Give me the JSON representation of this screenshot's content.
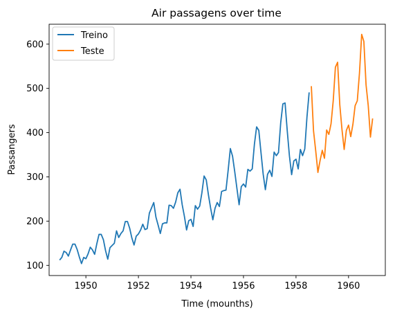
{
  "chart_data": {
    "type": "line",
    "title": "Air passagens over time",
    "xlabel": "Time (mounths)",
    "ylabel": "Passangers",
    "xlim": [
      1948.6,
      1961.4
    ],
    "ylim": [
      77,
      645
    ],
    "x_ticks": [
      1950,
      1952,
      1954,
      1956,
      1958,
      1960
    ],
    "y_ticks": [
      100,
      200,
      300,
      400,
      500,
      600
    ],
    "grid": false,
    "legend_position": "top-left",
    "series": [
      {
        "name": "Treino",
        "color": "#1f77b4",
        "x_start": "1949-01",
        "x_step": "1 month",
        "values": [
          112,
          118,
          132,
          129,
          121,
          135,
          148,
          148,
          136,
          119,
          104,
          118,
          115,
          126,
          141,
          135,
          125,
          149,
          170,
          170,
          158,
          133,
          114,
          140,
          145,
          150,
          178,
          163,
          172,
          178,
          199,
          199,
          184,
          162,
          146,
          166,
          171,
          180,
          193,
          181,
          183,
          218,
          230,
          242,
          209,
          191,
          172,
          194,
          196,
          196,
          236,
          235,
          229,
          243,
          264,
          272,
          237,
          211,
          180,
          201,
          204,
          188,
          235,
          227,
          234,
          264,
          302,
          293,
          259,
          229,
          203,
          229,
          242,
          233,
          267,
          269,
          270,
          315,
          364,
          347,
          312,
          274,
          237,
          278,
          284,
          277,
          317,
          313,
          318,
          374,
          413,
          405,
          355,
          306,
          271,
          306,
          315,
          301,
          356,
          348,
          355,
          422,
          465,
          467,
          404,
          347,
          305,
          336,
          340,
          318,
          362,
          348,
          363,
          435,
          491
        ]
      },
      {
        "name": "Teste",
        "color": "#ff7f0e",
        "x_start": "1958-08",
        "x_step": "1 month",
        "values": [
          505,
          404,
          359,
          310,
          337,
          360,
          342,
          406,
          396,
          420,
          472,
          548,
          559,
          463,
          407,
          362,
          405,
          417,
          391,
          419,
          461,
          472,
          535,
          622,
          606,
          508,
          461,
          390,
          432
        ]
      }
    ]
  }
}
